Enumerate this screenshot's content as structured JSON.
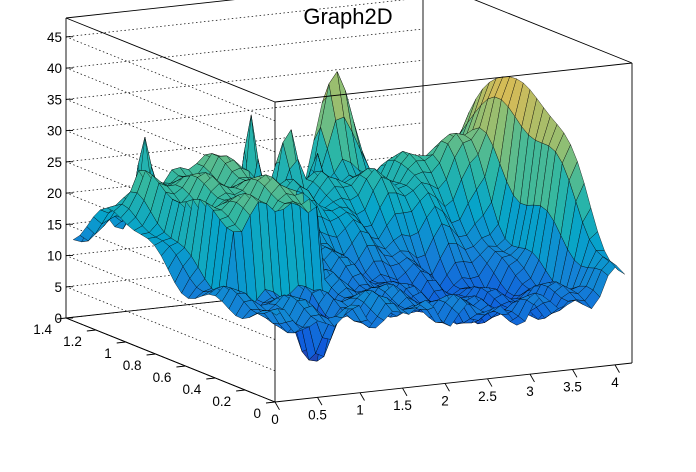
{
  "chart_data": {
    "type": "surface",
    "title": "Graph2D",
    "xlabel": "",
    "ylabel": "",
    "zlabel": "",
    "xlim": [
      0,
      4.2
    ],
    "ylim": [
      0,
      1.4
    ],
    "zlim": [
      0,
      48
    ],
    "x_ticks": [
      "0",
      "0.5",
      "1",
      "1.5",
      "2",
      "2.5",
      "3",
      "3.5",
      "4"
    ],
    "y_ticks": [
      "0",
      "0.2",
      "0.4",
      "0.6",
      "0.8",
      "1",
      "1.2",
      "1.4"
    ],
    "z_ticks": [
      "0",
      "5",
      "10",
      "15",
      "20",
      "25",
      "30",
      "35",
      "40",
      "45"
    ],
    "grid": true,
    "palette": [
      "#352a87",
      "#0f5cdd",
      "#1481d6",
      "#06a4ca",
      "#2eb7a4",
      "#87bf77",
      "#d1bb59",
      "#fec832",
      "#f9fb0e"
    ]
  }
}
